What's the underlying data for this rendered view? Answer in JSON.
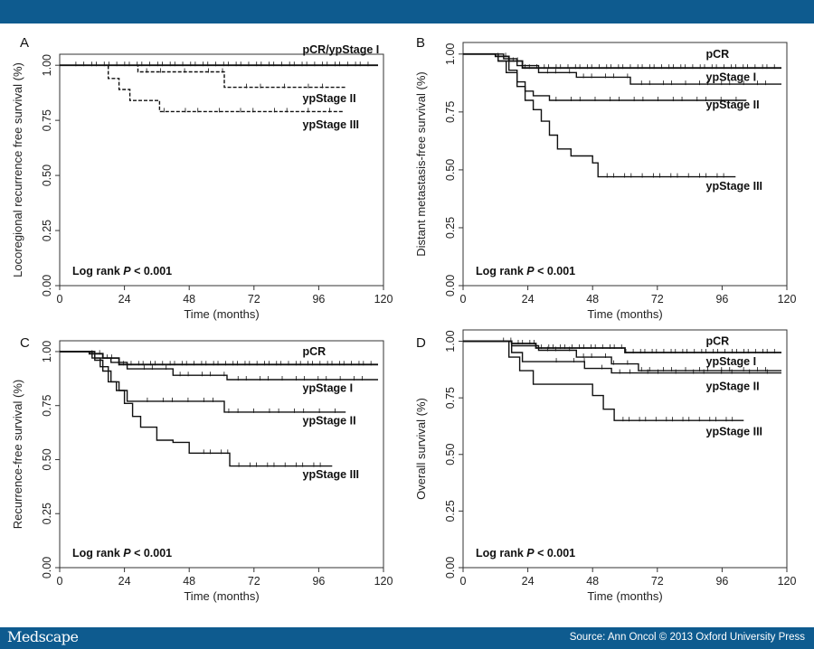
{
  "colors": {
    "bar": "#0e5b8f",
    "curve": "#111111",
    "axis": "#333333",
    "background": "#ffffff"
  },
  "header": {
    "brand": "Medscape",
    "source": "Source: Ann Oncol © 2013 Oxford University Press"
  },
  "chart_data": [
    {
      "panel": "A",
      "type": "line",
      "ylabel": "Locoregional recurrence free survival (%)",
      "xlabel": "Time (months)",
      "xlim": [
        0,
        120
      ],
      "ylim": [
        0,
        1.05
      ],
      "xticks": [
        0,
        24,
        48,
        72,
        96,
        120
      ],
      "yticks": [
        "0.00",
        "0.25",
        "0.50",
        "0.75",
        "1.00"
      ],
      "note": {
        "prefix": "Log rank ",
        "p": "P",
        "suffix": " < 0.001"
      },
      "series": [
        {
          "name": "pCR/ypStage I",
          "label_x": 90,
          "label_y": 1.07,
          "style": "solid",
          "x": [
            0,
            118
          ],
          "y": [
            1.0,
            1.0
          ],
          "censor_range": [
            6,
            116
          ],
          "censor_count": 45
        },
        {
          "name": "ypStage II",
          "label_x": 90,
          "label_y": 0.85,
          "style": "dash",
          "x": [
            0,
            29,
            29,
            61,
            61,
            106
          ],
          "y": [
            1.0,
            1.0,
            0.97,
            0.97,
            0.9,
            0.9
          ],
          "censor_range": [
            30,
            104
          ],
          "censor_count": 10
        },
        {
          "name": "ypStage III",
          "label_x": 90,
          "label_y": 0.73,
          "style": "dash",
          "x": [
            0,
            18,
            18,
            22,
            22,
            26,
            26,
            37,
            37,
            105
          ],
          "y": [
            1.0,
            1.0,
            0.94,
            0.94,
            0.89,
            0.89,
            0.84,
            0.84,
            0.79,
            0.79
          ],
          "censor_range": [
            38,
            104
          ],
          "censor_count": 10
        }
      ]
    },
    {
      "panel": "B",
      "type": "line",
      "ylabel": "Distant metastasis-free survival (%)",
      "xlabel": "Time (months)",
      "xlim": [
        0,
        120
      ],
      "ylim": [
        0,
        1.05
      ],
      "xticks": [
        0,
        24,
        48,
        72,
        96,
        120
      ],
      "yticks": [
        "0.00",
        "0.25",
        "0.50",
        "0.75",
        "1.00"
      ],
      "note": {
        "prefix": "Log rank ",
        "p": "P",
        "suffix": " < 0.001"
      },
      "series": [
        {
          "name": "pCR",
          "label_x": 90,
          "label_y": 1.0,
          "style": "solid",
          "x": [
            0,
            12,
            12,
            17,
            17,
            22,
            22,
            118
          ],
          "y": [
            1.0,
            1.0,
            0.99,
            0.99,
            0.97,
            0.97,
            0.94,
            0.94
          ],
          "censor_range": [
            13,
            117
          ],
          "censor_count": 45
        },
        {
          "name": "ypStage I",
          "label_x": 90,
          "label_y": 0.9,
          "style": "solid",
          "x": [
            0,
            15,
            15,
            20,
            20,
            28,
            28,
            42,
            42,
            62,
            62,
            118
          ],
          "y": [
            1.0,
            1.0,
            0.98,
            0.98,
            0.95,
            0.95,
            0.92,
            0.92,
            0.9,
            0.9,
            0.87,
            0.87
          ],
          "censor_range": [
            30,
            116
          ],
          "censor_count": 20
        },
        {
          "name": "ypStage II",
          "label_x": 90,
          "label_y": 0.78,
          "style": "solid",
          "x": [
            0,
            13,
            13,
            17,
            17,
            20,
            20,
            23,
            23,
            26,
            26,
            32,
            32,
            105
          ],
          "y": [
            1.0,
            1.0,
            0.97,
            0.97,
            0.93,
            0.93,
            0.88,
            0.88,
            0.84,
            0.84,
            0.82,
            0.82,
            0.8,
            0.8
          ],
          "censor_range": [
            34,
            104
          ],
          "censor_count": 15
        },
        {
          "name": "ypStage III",
          "label_x": 90,
          "label_y": 0.43,
          "style": "solid",
          "x": [
            0,
            13,
            13,
            16,
            16,
            20,
            20,
            23,
            23,
            26,
            26,
            29,
            29,
            32,
            32,
            35,
            35,
            40,
            40,
            48,
            48,
            50,
            50,
            64,
            64,
            101
          ],
          "y": [
            1.0,
            1.0,
            0.97,
            0.97,
            0.92,
            0.92,
            0.86,
            0.86,
            0.8,
            0.8,
            0.76,
            0.76,
            0.71,
            0.71,
            0.65,
            0.65,
            0.59,
            0.59,
            0.56,
            0.56,
            0.53,
            0.53,
            0.47,
            0.47,
            0.47,
            0.47
          ],
          "censor_range": [
            52,
            100
          ],
          "censor_count": 14
        }
      ]
    },
    {
      "panel": "C",
      "type": "line",
      "ylabel": "Recurrence-free survival (%)",
      "xlabel": "Time (months)",
      "xlim": [
        0,
        120
      ],
      "ylim": [
        0,
        1.05
      ],
      "xticks": [
        0,
        24,
        48,
        72,
        96,
        120
      ],
      "yticks": [
        "0.00",
        "0.25",
        "0.50",
        "0.75",
        "1.00"
      ],
      "note": {
        "prefix": "Log rank ",
        "p": "P",
        "suffix": " < 0.001"
      },
      "series": [
        {
          "name": "pCR",
          "label_x": 90,
          "label_y": 1.0,
          "style": "solid",
          "x": [
            0,
            11,
            11,
            16,
            16,
            22,
            22,
            118
          ],
          "y": [
            1.0,
            1.0,
            0.99,
            0.99,
            0.97,
            0.97,
            0.94,
            0.94
          ],
          "censor_range": [
            12,
            117
          ],
          "censor_count": 45
        },
        {
          "name": "ypStage I",
          "label_x": 90,
          "label_y": 0.83,
          "style": "solid",
          "x": [
            0,
            13,
            13,
            19,
            19,
            25,
            25,
            42,
            42,
            62,
            62,
            118
          ],
          "y": [
            1.0,
            1.0,
            0.97,
            0.97,
            0.95,
            0.95,
            0.92,
            0.92,
            0.89,
            0.89,
            0.87,
            0.87
          ],
          "censor_range": [
            30,
            116
          ],
          "censor_count": 20
        },
        {
          "name": "ypStage II",
          "label_x": 90,
          "label_y": 0.68,
          "style": "solid",
          "x": [
            0,
            13,
            13,
            16,
            16,
            19,
            19,
            22,
            22,
            25,
            25,
            28,
            28,
            61,
            61,
            106
          ],
          "y": [
            1.0,
            1.0,
            0.96,
            0.96,
            0.91,
            0.91,
            0.86,
            0.86,
            0.82,
            0.82,
            0.77,
            0.77,
            0.77,
            0.77,
            0.72,
            0.72
          ],
          "censor_range": [
            32,
            105
          ],
          "censor_count": 15
        },
        {
          "name": "ypStage III",
          "label_x": 90,
          "label_y": 0.43,
          "style": "solid",
          "x": [
            0,
            12,
            12,
            15,
            15,
            18,
            18,
            21,
            21,
            24,
            24,
            27,
            27,
            30,
            30,
            36,
            36,
            42,
            42,
            48,
            48,
            58,
            58,
            63,
            63,
            101
          ],
          "y": [
            1.0,
            1.0,
            0.97,
            0.97,
            0.93,
            0.93,
            0.86,
            0.86,
            0.82,
            0.82,
            0.76,
            0.76,
            0.7,
            0.7,
            0.65,
            0.65,
            0.59,
            0.59,
            0.58,
            0.58,
            0.53,
            0.53,
            0.53,
            0.53,
            0.47,
            0.47
          ],
          "censor_range": [
            52,
            100
          ],
          "censor_count": 14
        }
      ]
    },
    {
      "panel": "D",
      "type": "line",
      "ylabel": "Overall survival (%)",
      "xlabel": "Time (months)",
      "xlim": [
        0,
        120
      ],
      "ylim": [
        0,
        1.05
      ],
      "xticks": [
        0,
        24,
        48,
        72,
        96,
        120
      ],
      "yticks": [
        "0.00",
        "0.25",
        "0.50",
        "0.75",
        "1.00"
      ],
      "note": {
        "prefix": "Log rank ",
        "p": "P",
        "suffix": " < 0.001"
      },
      "series": [
        {
          "name": "pCR",
          "label_x": 90,
          "label_y": 1.0,
          "style": "solid",
          "x": [
            0,
            18,
            18,
            27,
            27,
            60,
            60,
            118
          ],
          "y": [
            1.0,
            1.0,
            0.99,
            0.99,
            0.97,
            0.97,
            0.95,
            0.95
          ],
          "censor_range": [
            15,
            117
          ],
          "censor_count": 45
        },
        {
          "name": "ypStage I",
          "label_x": 90,
          "label_y": 0.91,
          "style": "solid",
          "x": [
            0,
            18,
            18,
            28,
            28,
            42,
            42,
            55,
            55,
            65,
            65,
            118
          ],
          "y": [
            1.0,
            1.0,
            0.98,
            0.98,
            0.96,
            0.96,
            0.93,
            0.93,
            0.9,
            0.9,
            0.87,
            0.87
          ],
          "censor_range": [
            30,
            116
          ],
          "censor_count": 20
        },
        {
          "name": "ypStage II",
          "label_x": 90,
          "label_y": 0.8,
          "style": "solid",
          "x": [
            0,
            18,
            18,
            22,
            22,
            32,
            32,
            45,
            45,
            55,
            55,
            118
          ],
          "y": [
            1.0,
            1.0,
            0.95,
            0.95,
            0.91,
            0.91,
            0.91,
            0.91,
            0.88,
            0.88,
            0.86,
            0.86
          ],
          "censor_range": [
            34,
            116
          ],
          "censor_count": 15
        },
        {
          "name": "ypStage III",
          "label_x": 90,
          "label_y": 0.6,
          "style": "solid",
          "x": [
            0,
            17,
            17,
            21,
            21,
            26,
            26,
            40,
            40,
            48,
            48,
            52,
            52,
            56,
            56,
            104
          ],
          "y": [
            1.0,
            1.0,
            0.93,
            0.93,
            0.87,
            0.87,
            0.81,
            0.81,
            0.81,
            0.81,
            0.76,
            0.76,
            0.7,
            0.7,
            0.65,
            0.65
          ],
          "censor_range": [
            58,
            103
          ],
          "censor_count": 14
        }
      ]
    }
  ]
}
